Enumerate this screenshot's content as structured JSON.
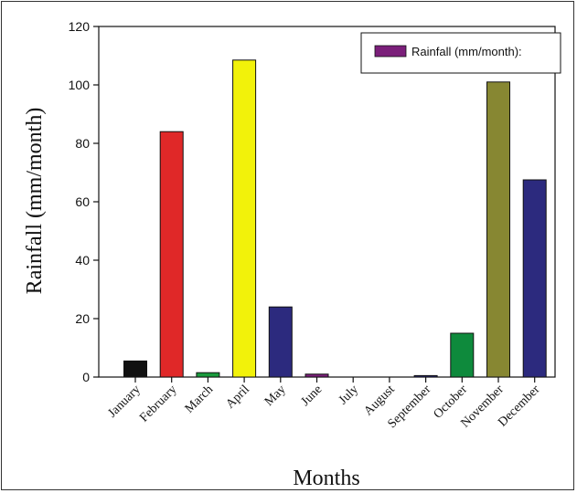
{
  "chart_data": {
    "type": "bar",
    "xlabel": "Months",
    "ylabel": "Rainfall (mm/month)",
    "ylim": [
      0,
      120
    ],
    "yticks": [
      0,
      20,
      40,
      60,
      80,
      100,
      120
    ],
    "grid": false,
    "legend_position": "top-right",
    "legend": [
      {
        "label": "Rainfall (mm/month):",
        "color": "#7B1F7A"
      }
    ],
    "categories": [
      "January",
      "February",
      "March",
      "April",
      "May",
      "June",
      "July",
      "August",
      "September",
      "October",
      "November",
      "December"
    ],
    "values": [
      5.5,
      84,
      1.5,
      108.5,
      24,
      1,
      0,
      0,
      0.5,
      15,
      101,
      67.5
    ],
    "colors": [
      "#111111",
      "#E02828",
      "#1A9A3C",
      "#F2F20A",
      "#2C2A7E",
      "#7B1F7A",
      "#111111",
      "#111111",
      "#2C2A7E",
      "#0E8A3C",
      "#878732",
      "#2C2A7E"
    ]
  }
}
